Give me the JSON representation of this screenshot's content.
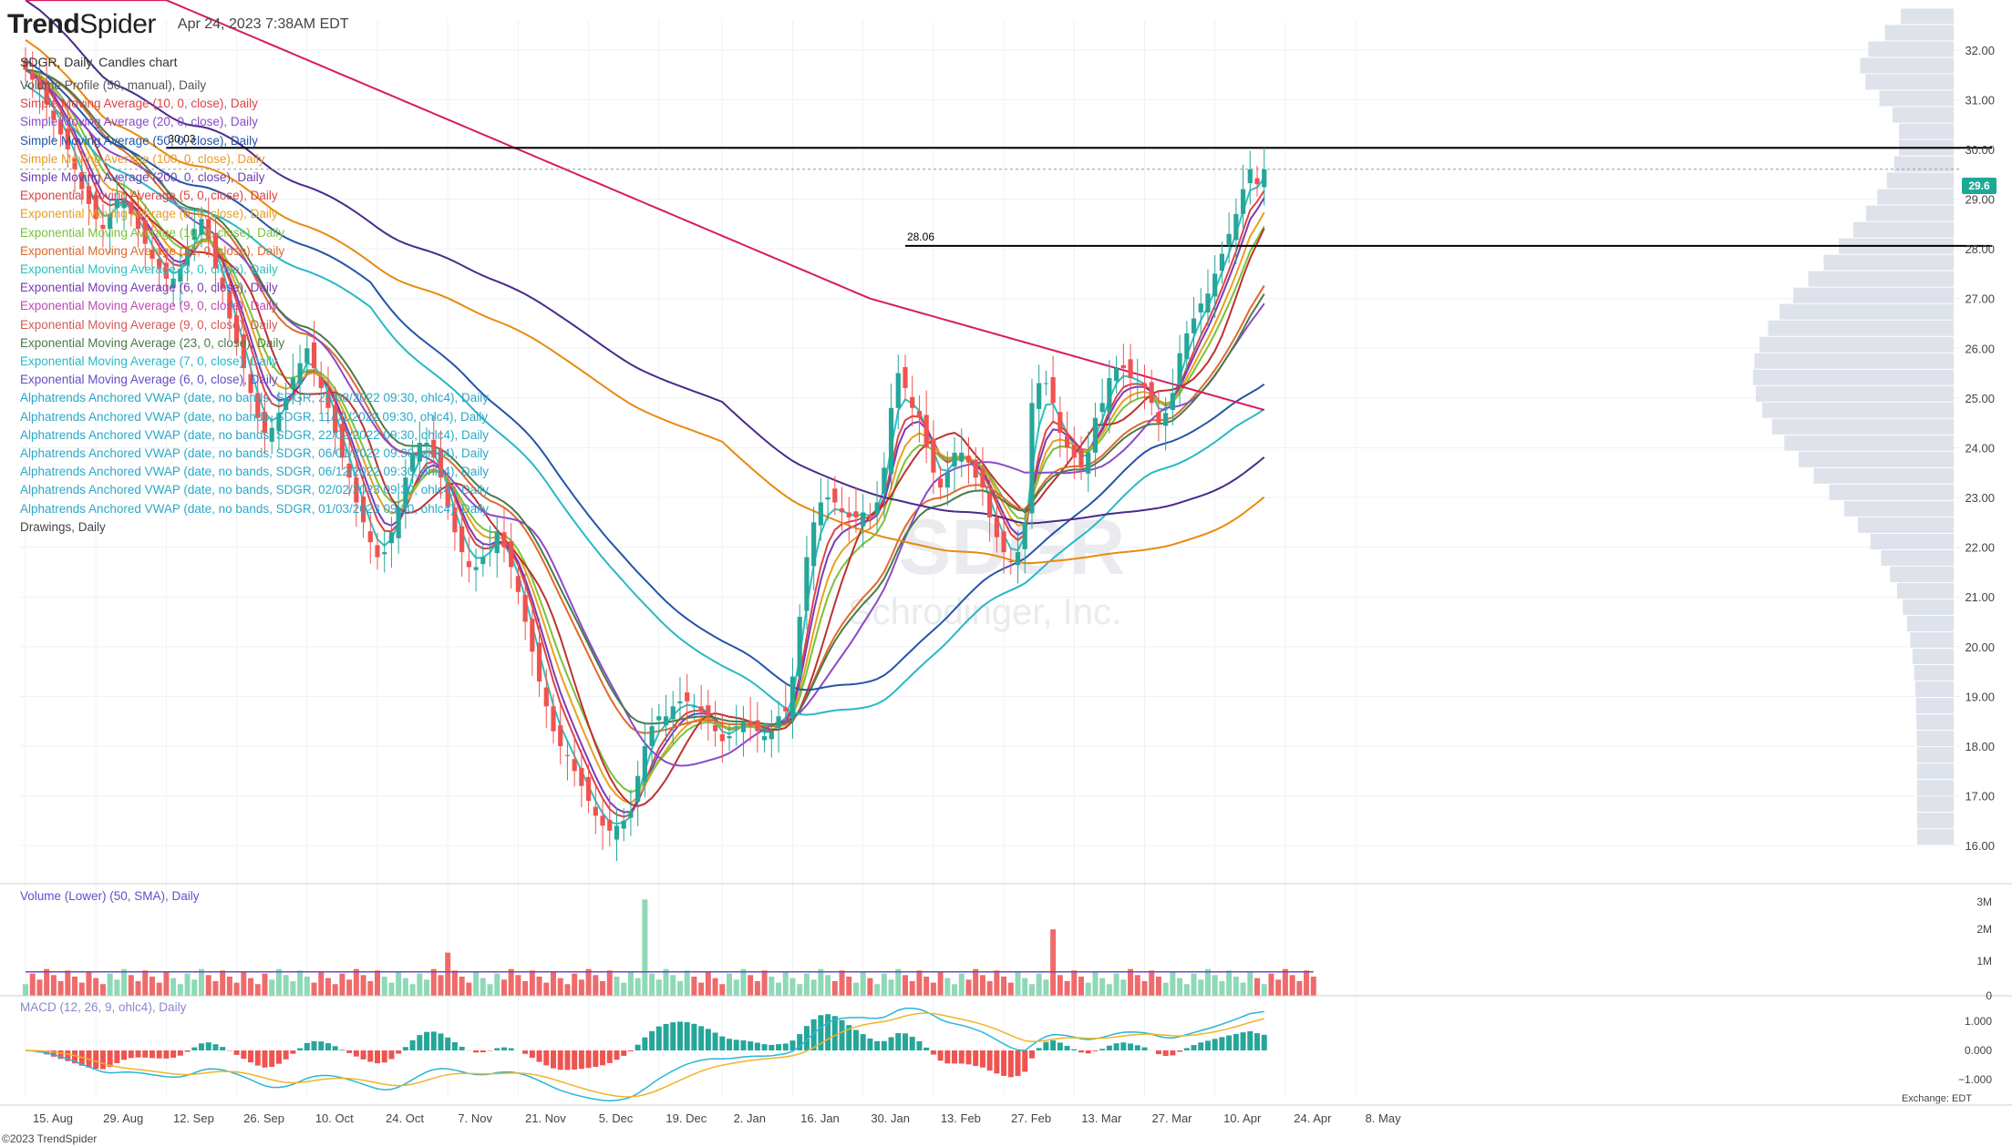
{
  "app": {
    "brand": "TrendSpider",
    "brand_bold": "Trend",
    "brand_rest": "Spider",
    "timestamp": "Apr 24, 2023 7:38AM EDT",
    "symbol_line": "SDGR, Daily, Candles chart",
    "watermark_symbol": "SDGR",
    "watermark_company": "Schrodinger, Inc.",
    "footer": "©2023 TrendSpider",
    "exchange": "Exchange: EDT"
  },
  "legend": [
    "Volume Profile (50, manual), Daily",
    "Simple Moving Average (10, 0, close), Daily",
    "Simple Moving Average (20, 0, close), Daily",
    "Simple Moving Average (50, 0, close), Daily",
    "Simple Moving Average (100, 0, close), Daily",
    "Simple Moving Average (200, 0, close), Daily",
    "Exponential Moving Average (5, 0, close), Daily",
    "Exponential Moving Average (8, 0, close), Daily",
    "Exponential Moving Average (10, 0, close), Daily",
    "Exponential Moving Average (21, 0, close), Daily",
    "Exponential Moving Average (3, 0, close), Daily",
    "Exponential Moving Average (6, 0, close), Daily",
    "Exponential Moving Average (9, 0, close), Daily",
    "Exponential Moving Average (9, 0, close), Daily",
    "Exponential Moving Average (23, 0, close), Daily",
    "Exponential Moving Average (7, 0, close), Daily",
    "Exponential Moving Average (6, 0, close), Daily",
    "Alphatrends Anchored VWAP (date, no bands, SDGR, 25/08/2022 09:30, ohlc4), Daily",
    "Alphatrends Anchored VWAP (date, no bands, SDGR, 11/01/2022 09:30, ohlc4), Daily",
    "Alphatrends Anchored VWAP (date, no bands, SDGR, 22/02/2022 09:30, ohlc4), Daily",
    "Alphatrends Anchored VWAP (date, no bands, SDGR, 06/01/2022 09:30, ohlc4), Daily",
    "Alphatrends Anchored VWAP (date, no bands, SDGR, 06/12/2022 09:30, ohlc4), Daily",
    "Alphatrends Anchored VWAP (date, no bands, SDGR, 02/02/2023 09:30, ohlc4), Daily",
    "Alphatrends Anchored VWAP (date, no bands, SDGR, 01/03/2023 09:30, ohlc4), Daily",
    "Drawings, Daily"
  ],
  "legend_colors": [
    "#555",
    "#d44",
    "#8a4bc8",
    "#2255aa",
    "#e89a2a",
    "#6a3fb0",
    "#d44",
    "#e8a020",
    "#7ac13a",
    "#e06a2a",
    "#2cc0c0",
    "#7a3ab8",
    "#c04ab0",
    "#d45a5a",
    "#4a7a4a",
    "#28b8c8",
    "#6a4ac8",
    "#2aa8c8",
    "#2aa8c8",
    "#2aa8c8",
    "#2aa8c8",
    "#2aa8c8",
    "#2aa8c8",
    "#2aa8c8",
    "#444"
  ],
  "colors": {
    "up": "#26a69a",
    "down": "#ef5350",
    "up_vol": "#8fd9b6",
    "down_vol": "#ef6b6b",
    "profile": "#d8dde8",
    "macd_signal": "#f0b429",
    "macd_line": "#29b6d6"
  },
  "price_badge": "29.6",
  "volume_label": "Volume (Lower) (50, SMA), Daily",
  "macd_label": "MACD (12, 26, 9, ohlc4), Daily",
  "chart_data": {
    "type": "candlestick",
    "title": "SDGR, Daily, Candles chart",
    "ylim": [
      15.6,
      32.6
    ],
    "yticks": [
      "32.00",
      "31.00",
      "30.00",
      "29.00",
      "28.00",
      "27.00",
      "26.00",
      "25.00",
      "24.00",
      "23.00",
      "22.00",
      "21.00",
      "20.00",
      "19.00",
      "18.00",
      "17.00",
      "16.00"
    ],
    "xticks": [
      "15. Aug",
      "29. Aug",
      "12. Sep",
      "26. Sep",
      "10. Oct",
      "24. Oct",
      "7. Nov",
      "21. Nov",
      "5. Dec",
      "19. Dec",
      "2. Jan",
      "16. Jan",
      "30. Jan",
      "13. Feb",
      "27. Feb",
      "13. Mar",
      "27. Mar",
      "10. Apr",
      "24. Apr",
      "8. May"
    ],
    "num_days": 184,
    "closes": [
      31.6,
      31.4,
      31.2,
      30.9,
      30.6,
      30.3,
      30.0,
      29.6,
      29.2,
      28.9,
      28.6,
      28.4,
      28.7,
      29.0,
      29.0,
      28.7,
      28.4,
      28.1,
      27.8,
      27.6,
      27.4,
      27.4,
      27.6,
      28.0,
      28.4,
      28.6,
      28.2,
      27.6,
      27.2,
      26.6,
      26.1,
      25.6,
      25.1,
      24.6,
      24.3,
      24.4,
      24.7,
      25.0,
      25.4,
      25.7,
      26.0,
      25.6,
      25.2,
      24.8,
      24.3,
      23.8,
      23.4,
      22.9,
      22.5,
      22.1,
      21.8,
      21.9,
      22.3,
      22.8,
      23.4,
      23.9,
      24.1,
      24.1,
      23.8,
      23.4,
      22.8,
      22.3,
      21.9,
      21.6,
      21.6,
      21.8,
      22.0,
      22.3,
      22.0,
      21.6,
      21.1,
      20.5,
      19.9,
      19.3,
      18.8,
      18.3,
      18.0,
      17.8,
      17.5,
      17.2,
      16.9,
      16.6,
      16.4,
      16.3,
      16.4,
      16.5,
      16.7,
      17.4,
      18.0,
      18.4,
      18.6,
      18.6,
      18.8,
      18.9,
      18.9,
      18.8,
      18.7,
      18.6,
      18.3,
      18.1,
      18.2,
      18.4,
      18.5,
      18.4,
      18.3,
      18.2,
      18.3,
      18.6,
      18.7,
      19.4,
      20.6,
      21.8,
      22.5,
      22.9,
      23.0,
      22.9,
      22.7,
      22.6,
      22.6,
      22.7,
      22.6,
      22.9,
      23.6,
      24.8,
      25.5,
      25.2,
      24.8,
      24.6,
      24.0,
      23.5,
      23.2,
      23.5,
      23.9,
      23.9,
      23.7,
      23.4,
      23.2,
      22.6,
      22.2,
      21.9,
      21.7,
      21.9,
      22.5,
      24.9,
      25.3,
      25.3,
      24.9,
      24.3,
      24.0,
      23.8,
      23.6,
      23.9,
      24.6,
      24.9,
      25.4,
      25.6,
      25.6,
      25.4,
      25.3,
      25.2,
      24.9,
      24.5,
      24.7,
      25.1,
      25.9,
      26.3,
      26.6,
      26.9,
      27.1,
      27.5,
      27.9,
      28.3,
      28.7,
      29.2,
      29.6,
      29.3,
      29.6
    ],
    "horizontal_levels": [
      {
        "value": 30.03,
        "label": "30.03"
      },
      {
        "value": 28.06,
        "label": "28.06"
      }
    ],
    "volume_axis": [
      "3M",
      "2M",
      "1M",
      "0"
    ],
    "macd_axis": [
      "1.000",
      "0.000",
      "−1.000"
    ]
  }
}
